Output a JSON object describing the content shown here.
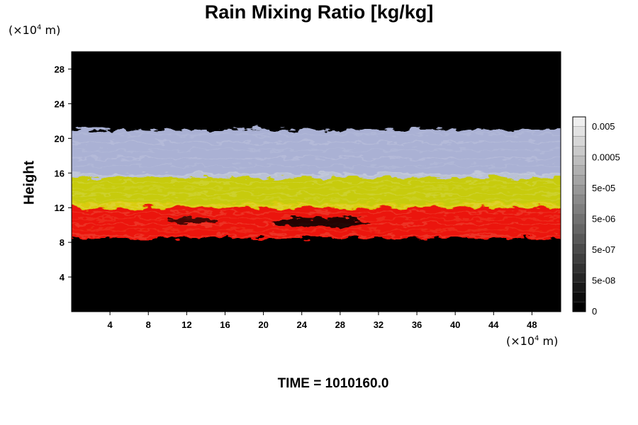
{
  "chart_data": {
    "type": "heatmap",
    "title": "Rain Mixing Ratio [kg/kg]",
    "ylabel": "Height",
    "y_unit": {
      "prefix": "(×10",
      "exp": "4",
      "suffix": " m)"
    },
    "x_unit": {
      "prefix": "(×10",
      "exp": "4",
      "suffix": " m)"
    },
    "xlim": [
      0,
      51
    ],
    "ylim": [
      0,
      30
    ],
    "xticks": [
      4,
      8,
      12,
      16,
      20,
      24,
      28,
      32,
      36,
      40,
      44,
      48
    ],
    "yticks": [
      4,
      8,
      12,
      16,
      20,
      24,
      28
    ],
    "colorbar": {
      "labels": [
        "0.005",
        "0.0005",
        "5e-05",
        "5e-06",
        "5e-07",
        "5e-08",
        "0"
      ],
      "levels": 20,
      "colors": [
        "#000000",
        "#efefef"
      ]
    },
    "bands": [
      {
        "name": "red",
        "color": "#ff1a0a",
        "y_range": [
          8.5,
          12.5
        ]
      },
      {
        "name": "yellow",
        "color": "#d8dc10",
        "y_range": [
          12.0,
          16.0
        ]
      },
      {
        "name": "pale blue",
        "color": "#b8c0e6",
        "y_range": [
          15.5,
          21.0
        ]
      }
    ],
    "background_color": "#000000",
    "time_label": "TIME = 1010160.0"
  }
}
